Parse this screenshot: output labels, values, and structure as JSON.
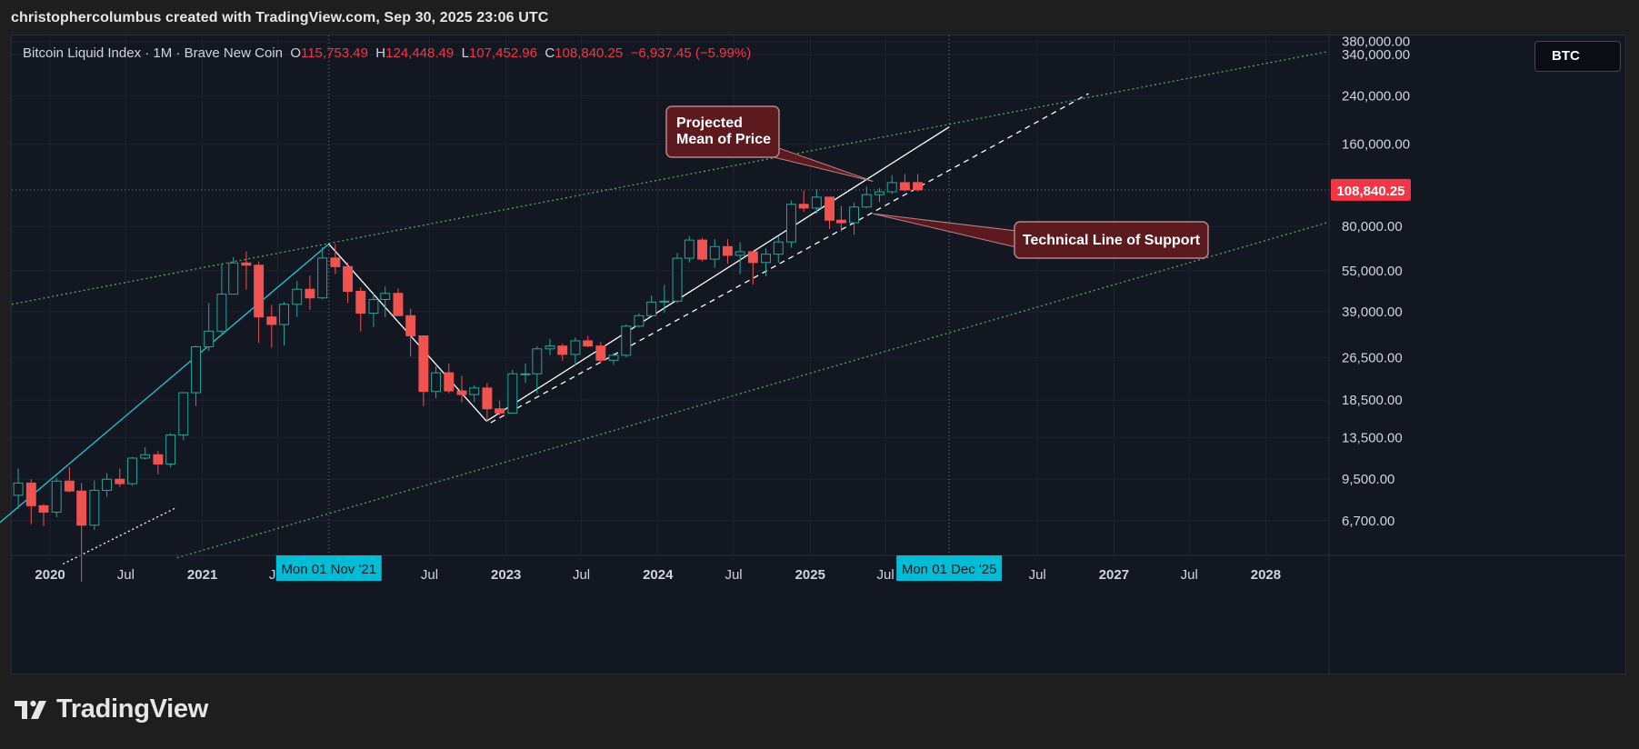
{
  "header": {
    "attribution": "christophercolumbus created with TradingView.com, Sep 30, 2025 23:06 UTC"
  },
  "legend": {
    "symbol": "Bitcoin Liquid Index · 1M · Brave New Coin",
    "o_label": "O",
    "o_value": "115,753.49",
    "h_label": "H",
    "h_value": "124,448.49",
    "l_label": "L",
    "l_value": "107,452.96",
    "c_label": "C",
    "c_value": "108,840.25",
    "change": "−6,937.45 (−5.99%)"
  },
  "symbol_badge": "BTC",
  "brand": {
    "name": "TradingView"
  },
  "colors": {
    "background": "#131722",
    "up": "#26a69a",
    "down": "#ef5350",
    "channel": "#4caf50",
    "crosshair": "#2196f3",
    "cyan_trend": "#26c6da",
    "badge_teal": "#00bcd4",
    "annotation_fill": "#5c1a1f",
    "annotation_border": "#b7848a"
  },
  "chart_data": {
    "type": "candlestick",
    "title": "Bitcoin Liquid Index",
    "interval": "1M",
    "source": "Brave New Coin",
    "y_scale": "log",
    "ylim": [
      5000,
      400000
    ],
    "xlim": [
      "2019-10-01",
      "2028-06-01"
    ],
    "y_ticks": [
      {
        "v": 6700,
        "label": "6,700.00"
      },
      {
        "v": 9500,
        "label": "9,500.00"
      },
      {
        "v": 13500,
        "label": "13,500.00"
      },
      {
        "v": 18500,
        "label": "18,500.00"
      },
      {
        "v": 26500,
        "label": "26,500.00"
      },
      {
        "v": 39000,
        "label": "39,000.00"
      },
      {
        "v": 55000,
        "label": "55,000.00"
      },
      {
        "v": 80000,
        "label": "80,000.00"
      },
      {
        "v": 160000,
        "label": "160,000.00"
      },
      {
        "v": 240000,
        "label": "240,000.00"
      },
      {
        "v": 340000,
        "label": "340,000.00"
      },
      {
        "v": 380000,
        "label": "380,000.00"
      }
    ],
    "x_ticks": [
      {
        "d": "2020-01",
        "label": "2020"
      },
      {
        "d": "2020-07",
        "label": "Jul"
      },
      {
        "d": "2021-01",
        "label": "2021"
      },
      {
        "d": "2021-07",
        "label": "Jul"
      },
      {
        "d": "2022-07",
        "label": "Jul"
      },
      {
        "d": "2023-01",
        "label": "2023"
      },
      {
        "d": "2023-07",
        "label": "Jul"
      },
      {
        "d": "2024-01",
        "label": "2024"
      },
      {
        "d": "2024-07",
        "label": "Jul"
      },
      {
        "d": "2025-01",
        "label": "2025"
      },
      {
        "d": "2025-07",
        "label": "Jul"
      },
      {
        "d": "2026-07",
        "label": "Jul"
      },
      {
        "d": "2027-01",
        "label": "2027"
      },
      {
        "d": "2027-07",
        "label": "Jul"
      },
      {
        "d": "2028-01",
        "label": "2028"
      }
    ],
    "crosshair_labels": [
      {
        "d": "2021-11",
        "label": "Mon 01 Nov '21"
      },
      {
        "d": "2025-12",
        "label": "Mon 01 Dec '25"
      }
    ],
    "last_price": {
      "value": 108840.25,
      "label": "108,840.25"
    },
    "candles": [
      {
        "d": "2019-10",
        "o": 8300,
        "h": 10400,
        "l": 7400,
        "c": 9200
      },
      {
        "d": "2019-11",
        "o": 9200,
        "h": 9500,
        "l": 6500,
        "c": 7600
      },
      {
        "d": "2019-12",
        "o": 7600,
        "h": 7700,
        "l": 6400,
        "c": 7200
      },
      {
        "d": "2020-01",
        "o": 7200,
        "h": 9600,
        "l": 6900,
        "c": 9350
      },
      {
        "d": "2020-02",
        "o": 9350,
        "h": 10500,
        "l": 8500,
        "c": 8600
      },
      {
        "d": "2020-03",
        "o": 8600,
        "h": 9200,
        "l": 4000,
        "c": 6450
      },
      {
        "d": "2020-04",
        "o": 6450,
        "h": 9400,
        "l": 6200,
        "c": 8650
      },
      {
        "d": "2020-05",
        "o": 8650,
        "h": 10000,
        "l": 8200,
        "c": 9500
      },
      {
        "d": "2020-06",
        "o": 9500,
        "h": 10400,
        "l": 8900,
        "c": 9150
      },
      {
        "d": "2020-07",
        "o": 9150,
        "h": 11450,
        "l": 9000,
        "c": 11350
      },
      {
        "d": "2020-08",
        "o": 11350,
        "h": 12450,
        "l": 11200,
        "c": 11680
      },
      {
        "d": "2020-09",
        "o": 11680,
        "h": 12050,
        "l": 9900,
        "c": 10800
      },
      {
        "d": "2020-10",
        "o": 10800,
        "h": 14000,
        "l": 10500,
        "c": 13800
      },
      {
        "d": "2020-11",
        "o": 13800,
        "h": 19800,
        "l": 13200,
        "c": 19700
      },
      {
        "d": "2020-12",
        "o": 19700,
        "h": 29300,
        "l": 17600,
        "c": 29000
      },
      {
        "d": "2021-01",
        "o": 29000,
        "h": 41900,
        "l": 28000,
        "c": 33100
      },
      {
        "d": "2021-02",
        "o": 33100,
        "h": 58300,
        "l": 32400,
        "c": 45200
      },
      {
        "d": "2021-03",
        "o": 45200,
        "h": 61700,
        "l": 45000,
        "c": 58800
      },
      {
        "d": "2021-04",
        "o": 58800,
        "h": 64800,
        "l": 47000,
        "c": 57700
      },
      {
        "d": "2021-05",
        "o": 57700,
        "h": 59500,
        "l": 30000,
        "c": 37300
      },
      {
        "d": "2021-06",
        "o": 37300,
        "h": 41300,
        "l": 28800,
        "c": 35000
      },
      {
        "d": "2021-07",
        "o": 35000,
        "h": 42300,
        "l": 29300,
        "c": 41500
      },
      {
        "d": "2021-08",
        "o": 41500,
        "h": 50500,
        "l": 37300,
        "c": 47100
      },
      {
        "d": "2021-09",
        "o": 47100,
        "h": 52900,
        "l": 39600,
        "c": 43800
      },
      {
        "d": "2021-10",
        "o": 43800,
        "h": 67000,
        "l": 43300,
        "c": 61300
      },
      {
        "d": "2021-11",
        "o": 61300,
        "h": 69000,
        "l": 53500,
        "c": 57000
      },
      {
        "d": "2021-12",
        "o": 57000,
        "h": 59100,
        "l": 42000,
        "c": 46300
      },
      {
        "d": "2022-01",
        "o": 46300,
        "h": 47900,
        "l": 33000,
        "c": 38500
      },
      {
        "d": "2022-02",
        "o": 38500,
        "h": 45800,
        "l": 34300,
        "c": 43200
      },
      {
        "d": "2022-03",
        "o": 43200,
        "h": 48200,
        "l": 37200,
        "c": 45500
      },
      {
        "d": "2022-04",
        "o": 45500,
        "h": 47400,
        "l": 37700,
        "c": 37700
      },
      {
        "d": "2022-05",
        "o": 37700,
        "h": 40000,
        "l": 26700,
        "c": 31800
      },
      {
        "d": "2022-06",
        "o": 31800,
        "h": 31900,
        "l": 17600,
        "c": 19900
      },
      {
        "d": "2022-07",
        "o": 19900,
        "h": 24600,
        "l": 18800,
        "c": 23300
      },
      {
        "d": "2022-08",
        "o": 23300,
        "h": 25200,
        "l": 19600,
        "c": 20000
      },
      {
        "d": "2022-09",
        "o": 20000,
        "h": 22700,
        "l": 18200,
        "c": 19400
      },
      {
        "d": "2022-10",
        "o": 19400,
        "h": 21000,
        "l": 18200,
        "c": 20500
      },
      {
        "d": "2022-11",
        "o": 20500,
        "h": 21400,
        "l": 15500,
        "c": 17200
      },
      {
        "d": "2022-12",
        "o": 17200,
        "h": 18400,
        "l": 16300,
        "c": 16600
      },
      {
        "d": "2023-01",
        "o": 16600,
        "h": 23900,
        "l": 16500,
        "c": 23100
      },
      {
        "d": "2023-02",
        "o": 23100,
        "h": 25200,
        "l": 21400,
        "c": 23100
      },
      {
        "d": "2023-03",
        "o": 23100,
        "h": 29200,
        "l": 19600,
        "c": 28500
      },
      {
        "d": "2023-04",
        "o": 28500,
        "h": 31000,
        "l": 27000,
        "c": 29200
      },
      {
        "d": "2023-05",
        "o": 29200,
        "h": 29800,
        "l": 25800,
        "c": 27200
      },
      {
        "d": "2023-06",
        "o": 27200,
        "h": 31400,
        "l": 24800,
        "c": 30500
      },
      {
        "d": "2023-07",
        "o": 30500,
        "h": 31800,
        "l": 28900,
        "c": 29200
      },
      {
        "d": "2023-08",
        "o": 29200,
        "h": 30200,
        "l": 25300,
        "c": 25900
      },
      {
        "d": "2023-09",
        "o": 25900,
        "h": 27500,
        "l": 24900,
        "c": 27000
      },
      {
        "d": "2023-10",
        "o": 27000,
        "h": 35000,
        "l": 26600,
        "c": 34500
      },
      {
        "d": "2023-11",
        "o": 34500,
        "h": 38400,
        "l": 34100,
        "c": 37700
      },
      {
        "d": "2023-12",
        "o": 37700,
        "h": 44700,
        "l": 37600,
        "c": 42300
      },
      {
        "d": "2024-01",
        "o": 42300,
        "h": 48900,
        "l": 38500,
        "c": 42600
      },
      {
        "d": "2024-02",
        "o": 42600,
        "h": 64000,
        "l": 41900,
        "c": 61200
      },
      {
        "d": "2024-03",
        "o": 61200,
        "h": 73700,
        "l": 59000,
        "c": 71300
      },
      {
        "d": "2024-04",
        "o": 71300,
        "h": 72700,
        "l": 59600,
        "c": 60700
      },
      {
        "d": "2024-05",
        "o": 60700,
        "h": 71900,
        "l": 56500,
        "c": 67500
      },
      {
        "d": "2024-06",
        "o": 67500,
        "h": 71900,
        "l": 58400,
        "c": 62700
      },
      {
        "d": "2024-07",
        "o": 62700,
        "h": 70000,
        "l": 53500,
        "c": 64600
      },
      {
        "d": "2024-08",
        "o": 64600,
        "h": 65000,
        "l": 49000,
        "c": 59000
      },
      {
        "d": "2024-09",
        "o": 59000,
        "h": 66500,
        "l": 52600,
        "c": 63300
      },
      {
        "d": "2024-10",
        "o": 63300,
        "h": 73600,
        "l": 58900,
        "c": 70200
      },
      {
        "d": "2024-11",
        "o": 70200,
        "h": 99600,
        "l": 66800,
        "c": 96400
      },
      {
        "d": "2024-12",
        "o": 96400,
        "h": 108300,
        "l": 90500,
        "c": 93400
      },
      {
        "d": "2025-01",
        "o": 93400,
        "h": 109300,
        "l": 89200,
        "c": 102400
      },
      {
        "d": "2025-02",
        "o": 102400,
        "h": 102500,
        "l": 78300,
        "c": 84300
      },
      {
        "d": "2025-03",
        "o": 84300,
        "h": 95000,
        "l": 76600,
        "c": 82500
      },
      {
        "d": "2025-04",
        "o": 82500,
        "h": 97800,
        "l": 74500,
        "c": 94200
      },
      {
        "d": "2025-05",
        "o": 94200,
        "h": 111900,
        "l": 93300,
        "c": 104600
      },
      {
        "d": "2025-06",
        "o": 104600,
        "h": 110500,
        "l": 98200,
        "c": 107100
      },
      {
        "d": "2025-07",
        "o": 107100,
        "h": 123200,
        "l": 105200,
        "c": 115700
      },
      {
        "d": "2025-08",
        "o": 115700,
        "h": 124448.49,
        "l": 107500,
        "c": 108800
      },
      {
        "d": "2025-09",
        "o": 115753.49,
        "h": 124448.49,
        "l": 107452.96,
        "c": 108840.25
      }
    ],
    "lines": [
      {
        "name": "cyan-trendline",
        "style": "solid",
        "p1": [
          "2019-06-01",
          5000
        ],
        "p2": [
          "2021-11-01",
          69000
        ]
      },
      {
        "name": "descending-line",
        "style": "solid",
        "p1": [
          "2021-11-01",
          69000
        ],
        "p2": [
          "2022-11-15",
          15500
        ]
      },
      {
        "name": "projected-mean-line",
        "style": "solid",
        "p1": [
          "2022-11-15",
          15500
        ],
        "p2": [
          "2025-12-01",
          185000
        ]
      },
      {
        "name": "support-line",
        "style": "dashed",
        "p1": [
          "2022-11-25",
          15300
        ],
        "p2": [
          "2026-11-01",
          245000
        ]
      },
      {
        "name": "small-dotted-line",
        "style": "dotted",
        "p1": [
          "2020-02-01",
          4650
        ],
        "p2": [
          "2020-11-01",
          7500
        ]
      },
      {
        "name": "channel-upper",
        "style": "dotted",
        "p1": [
          "2019-10-01",
          41500
        ],
        "p2": [
          "2028-06-01",
          350000
        ]
      },
      {
        "name": "channel-lower",
        "style": "dotted",
        "p1": [
          "2020-11-01",
          4900
        ],
        "p2": [
          "2028-06-01",
          83000
        ]
      }
    ],
    "annotations": [
      {
        "text": [
          "Projected",
          "Mean of Price"
        ],
        "tip": [
          "2025-06-01",
          117000
        ]
      },
      {
        "text": [
          "Technical Line of Support"
        ],
        "tip": [
          "2025-06-01",
          89000
        ]
      }
    ]
  }
}
